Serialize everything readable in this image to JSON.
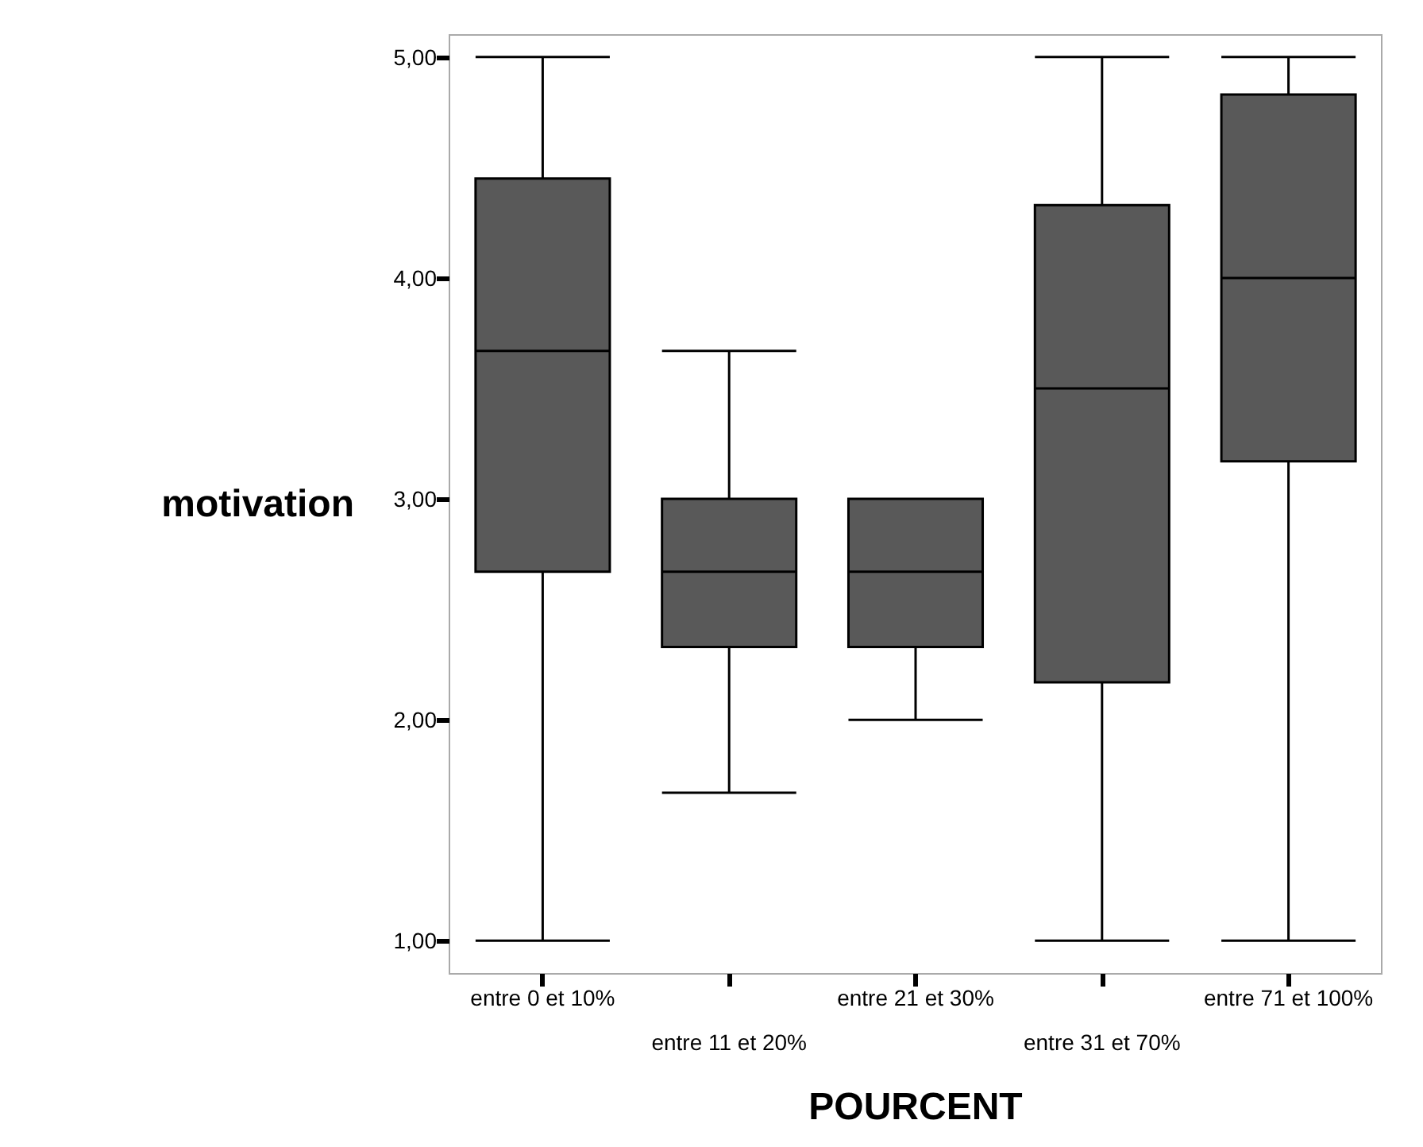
{
  "chart_data": {
    "type": "box",
    "xlabel": "POURCENT",
    "ylabel": "motivation",
    "categories": [
      "entre 0 et 10%",
      "entre 11 et 20%",
      "entre 21 et 30%",
      "entre 31 et 70%",
      "entre 71 et 100%"
    ],
    "color": "#595959",
    "boxes": [
      {
        "low": 1,
        "q1": 2.67,
        "median": 3.67,
        "q3": 4.45,
        "high": 5
      },
      {
        "low": 1.67,
        "q1": 2.33,
        "median": 2.67,
        "q3": 3,
        "high": 3.67
      },
      {
        "low": 2,
        "q1": 2.33,
        "median": 2.67,
        "q3": 3,
        "high": 3
      },
      {
        "low": 1,
        "q1": 2.17,
        "median": 3.5,
        "q3": 4.33,
        "high": 5
      },
      {
        "low": 1,
        "q1": 3.17,
        "median": 4,
        "q3": 4.83,
        "high": 5
      }
    ],
    "ylim": [
      0.85,
      5.1
    ],
    "yticks": [
      {
        "value": 1,
        "label": "1,00"
      },
      {
        "value": 2,
        "label": "2,00"
      },
      {
        "value": 3,
        "label": "3,00"
      },
      {
        "value": 4,
        "label": "4,00"
      },
      {
        "value": 5,
        "label": "5,00"
      }
    ],
    "grid": false
  }
}
